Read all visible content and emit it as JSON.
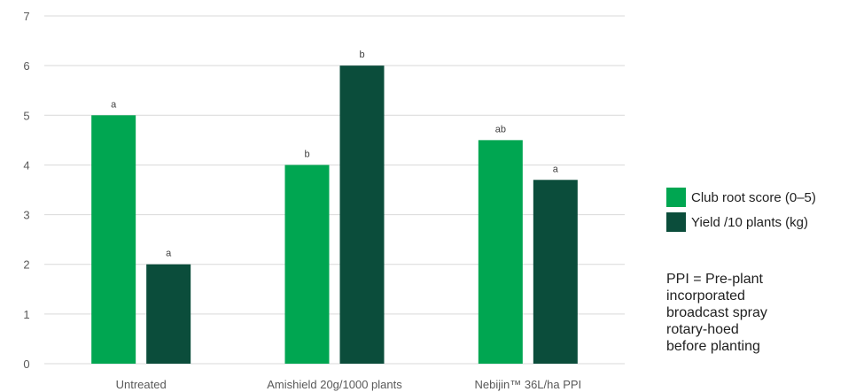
{
  "chart_data": {
    "type": "bar",
    "categories": [
      "Untreated",
      "Amishield 20g/1000 plants",
      "Nebijin™ 36L/ha PPI"
    ],
    "series": [
      {
        "name": "Club root score (0–5)",
        "color": "#00a651",
        "values": [
          5,
          4,
          4.5
        ],
        "labels": [
          "a",
          "b",
          "ab"
        ]
      },
      {
        "name": "Yield /10 plants (kg)",
        "color": "#0b4d3b",
        "values": [
          2,
          6,
          3.7
        ],
        "labels": [
          "a",
          "b",
          "a"
        ]
      }
    ],
    "ylim": [
      0,
      7
    ],
    "yticks": [
      "0",
      "1",
      "2",
      "3",
      "4",
      "5",
      "6",
      "7"
    ],
    "grid": true,
    "legend": "right"
  },
  "note_lines": [
    "PPI = Pre-plant",
    "incorporated",
    "broadcast spray",
    "rotary-hoed",
    "before planting"
  ]
}
